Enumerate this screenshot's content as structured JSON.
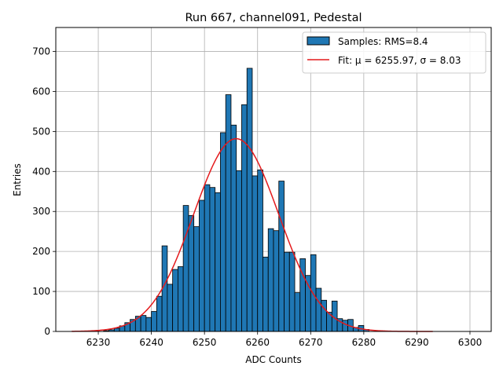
{
  "chart_data": {
    "type": "bar",
    "title": "Run 667, channel091, Pedestal",
    "xlabel": "ADC Counts",
    "ylabel": "Entries",
    "xlim": [
      6222,
      6304
    ],
    "ylim": [
      0,
      760
    ],
    "xticks": [
      6230,
      6240,
      6250,
      6260,
      6270,
      6280,
      6290,
      6300
    ],
    "yticks": [
      0,
      100,
      200,
      300,
      400,
      500,
      600,
      700
    ],
    "grid": true,
    "legend_position": "top-right",
    "colors": {
      "bar": "#1f77b4",
      "bar_edge": "#000000",
      "fit": "#e41a1c"
    },
    "histogram": {
      "name": "Samples: RMS=8.4",
      "bin_width": 1,
      "bin_starts": [
        6231,
        6232,
        6233,
        6234,
        6235,
        6236,
        6237,
        6238,
        6239,
        6240,
        6241,
        6242,
        6243,
        6244,
        6245,
        6246,
        6247,
        6248,
        6249,
        6250,
        6251,
        6252,
        6253,
        6254,
        6255,
        6256,
        6257,
        6258,
        6259,
        6260,
        6261,
        6262,
        6263,
        6264,
        6265,
        6266,
        6267,
        6268,
        6269,
        6270,
        6271,
        6272,
        6273,
        6274,
        6275,
        6276,
        6277,
        6278,
        6279,
        6280
      ],
      "values": [
        2,
        4,
        8,
        14,
        22,
        30,
        38,
        40,
        35,
        50,
        88,
        214,
        118,
        155,
        162,
        315,
        290,
        262,
        328,
        367,
        360,
        347,
        497,
        592,
        516,
        402,
        567,
        658,
        389,
        404,
        186,
        257,
        252,
        376,
        198,
        198,
        97,
        182,
        140,
        192,
        108,
        78,
        48,
        76,
        32,
        28,
        30,
        10,
        15,
        5
      ]
    },
    "fit": {
      "name": "Fit: μ = 6255.97, σ = 8.03",
      "mu": 6255.97,
      "sigma": 8.03,
      "amplitude": 482,
      "x_range": [
        6225,
        6293
      ]
    }
  }
}
